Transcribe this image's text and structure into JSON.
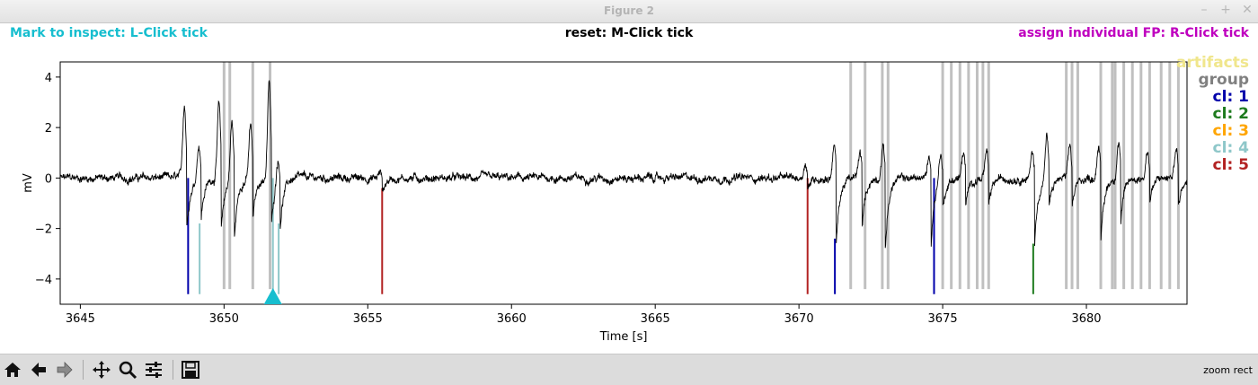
{
  "window": {
    "title": "Figure 2",
    "controls": [
      "–",
      "+",
      "✕"
    ]
  },
  "header": {
    "left": {
      "text": "Mark to inspect: L-Click tick",
      "color": "#17becf"
    },
    "center": {
      "text": "reset: M-Click tick",
      "color": "#000000"
    },
    "right": {
      "text": "assign individual FP: R-Click tick",
      "color": "#bf00bf"
    }
  },
  "legend": [
    {
      "label": "artifacts",
      "color": "#f0e68c"
    },
    {
      "label": "group",
      "color": "#808080"
    },
    {
      "label": "cl: 1",
      "color": "#0000aa"
    },
    {
      "label": "cl: 2",
      "color": "#1e7b1e"
    },
    {
      "label": "cl: 3",
      "color": "#ffa500"
    },
    {
      "label": "cl: 4",
      "color": "#8ec7c9"
    },
    {
      "label": "cl: 5",
      "color": "#b22222"
    }
  ],
  "toolbar": {
    "buttons": [
      "home-icon",
      "back-icon",
      "forward-icon",
      "pan-icon",
      "zoom-icon",
      "configure-icon",
      "save-icon"
    ],
    "status": "zoom rect"
  },
  "chart_data": {
    "type": "line",
    "xlabel": "Time [s]",
    "ylabel": "mV",
    "xlim": [
      3644.3,
      3683.5
    ],
    "ylim": [
      -5.0,
      4.6
    ],
    "xticks": [
      3645,
      3650,
      3655,
      3660,
      3665,
      3670,
      3675,
      3680
    ],
    "yticks": [
      -4,
      -2,
      0,
      2,
      4
    ],
    "grid": false,
    "legend_position": "right, outside axes",
    "trace_color": "#000000",
    "trace_events": [
      {
        "t": 3648.7,
        "pre": 2.9,
        "post": -2.0
      },
      {
        "t": 3649.2,
        "pre": 1.4,
        "post": -1.6
      },
      {
        "t": 3649.9,
        "pre": 2.9,
        "post": -2.1
      },
      {
        "t": 3650.35,
        "pre": 2.3,
        "post": -2.6
      },
      {
        "t": 3651.0,
        "pre": 2.1,
        "post": -1.7
      },
      {
        "t": 3651.65,
        "pre": 3.8,
        "post": -1.9
      },
      {
        "t": 3651.95,
        "pre": 1.0,
        "post": -1.8
      },
      {
        "t": 3655.5,
        "pre": 0.2,
        "post": -0.6
      },
      {
        "t": 3670.3,
        "pre": 0.6,
        "post": -0.4
      },
      {
        "t": 3671.3,
        "pre": 1.3,
        "post": -2.6
      },
      {
        "t": 3672.2,
        "pre": 1.0,
        "post": -2.0
      },
      {
        "t": 3673.0,
        "pre": 1.3,
        "post": -2.9
      },
      {
        "t": 3674.6,
        "pre": 0.8,
        "post": -2.5
      },
      {
        "t": 3675.0,
        "pre": 1.1,
        "post": -1.2
      },
      {
        "t": 3675.8,
        "pre": 1.0,
        "post": -1.2
      },
      {
        "t": 3676.6,
        "pre": 1.0,
        "post": -1.2
      },
      {
        "t": 3678.2,
        "pre": 1.0,
        "post": -2.6
      },
      {
        "t": 3678.7,
        "pre": 1.7,
        "post": -1.2
      },
      {
        "t": 3679.5,
        "pre": 1.2,
        "post": -1.2
      },
      {
        "t": 3680.5,
        "pre": 1.3,
        "post": -2.6
      },
      {
        "t": 3681.2,
        "pre": 1.5,
        "post": -1.7
      },
      {
        "t": 3682.2,
        "pre": 1.1,
        "post": -1.0
      },
      {
        "t": 3683.2,
        "pre": 1.2,
        "post": -1.2
      }
    ],
    "tick_bottom": -4.6,
    "colored_ticks": [
      {
        "t": 3648.75,
        "color": "#0000aa",
        "top": 0.0
      },
      {
        "t": 3649.15,
        "color": "#8ec7c9",
        "top": -1.8
      },
      {
        "t": 3651.7,
        "color": "#8ec7c9",
        "top": 0.0
      },
      {
        "t": 3651.9,
        "color": "#8ec7c9",
        "top": -1.8
      },
      {
        "t": 3655.5,
        "color": "#b22222",
        "top": -0.4
      },
      {
        "t": 3670.3,
        "color": "#b22222",
        "top": 0.0
      },
      {
        "t": 3671.25,
        "color": "#0000aa",
        "top": -2.4
      },
      {
        "t": 3674.7,
        "color": "#0000aa",
        "top": 0.0
      },
      {
        "t": 3678.15,
        "color": "#1e7b1e",
        "top": -2.6
      }
    ],
    "group_ticks": {
      "color": "#c0c0c0",
      "top": 4.6,
      "bottom": -4.4,
      "t": [
        3650.0,
        3650.2,
        3651.0,
        3651.6,
        3671.8,
        3672.3,
        3672.9,
        3673.1,
        3675.0,
        3675.3,
        3675.6,
        3675.9,
        3676.2,
        3676.4,
        3676.6,
        3679.3,
        3679.5,
        3679.7,
        3680.5,
        3680.9,
        3681.0,
        3681.3,
        3681.6,
        3681.9,
        3682.2,
        3682.6,
        3682.9,
        3683.2
      ]
    },
    "selection_marker": {
      "t": 3651.7,
      "color": "#17becf"
    }
  }
}
